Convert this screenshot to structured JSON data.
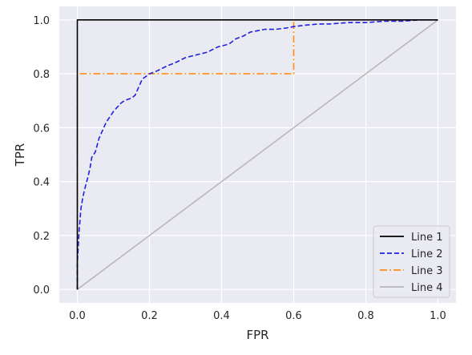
{
  "chart_data": {
    "type": "line",
    "xlabel": "FPR",
    "ylabel": "TPR",
    "xlim": [
      -0.05,
      1.05
    ],
    "ylim": [
      -0.05,
      1.05
    ],
    "xticks": [
      0.0,
      0.2,
      0.4,
      0.6,
      0.8,
      1.0
    ],
    "yticks": [
      0.0,
      0.2,
      0.4,
      0.6,
      0.8,
      1.0
    ],
    "xtick_labels": [
      "0.0",
      "0.2",
      "0.4",
      "0.6",
      "0.8",
      "1.0"
    ],
    "ytick_labels": [
      "0.0",
      "0.2",
      "0.4",
      "0.6",
      "0.8",
      "1.0"
    ],
    "grid": true,
    "legend_position": "lower-right",
    "colors": {
      "background": "#eaeaf2",
      "grid": "#ffffff"
    },
    "series": [
      {
        "name": "Line 1",
        "color": "#000000",
        "style": "solid",
        "x": [
          0,
          0,
          1
        ],
        "y": [
          0,
          1,
          1
        ]
      },
      {
        "name": "Line 2",
        "color": "#2020e0",
        "style": "dashed",
        "x": [
          0,
          0.0,
          0.005,
          0.01,
          0.015,
          0.02,
          0.03,
          0.035,
          0.04,
          0.05,
          0.06,
          0.07,
          0.08,
          0.09,
          0.1,
          0.12,
          0.13,
          0.15,
          0.16,
          0.17,
          0.18,
          0.2,
          0.22,
          0.25,
          0.27,
          0.3,
          0.33,
          0.36,
          0.39,
          0.42,
          0.44,
          0.46,
          0.48,
          0.5,
          0.52,
          0.55,
          0.58,
          0.6,
          0.63,
          0.67,
          0.7,
          0.75,
          0.8,
          0.85,
          0.9,
          0.95,
          1.0
        ],
        "y": [
          0,
          0.1,
          0.22,
          0.3,
          0.34,
          0.37,
          0.42,
          0.45,
          0.49,
          0.51,
          0.56,
          0.59,
          0.62,
          0.64,
          0.66,
          0.69,
          0.7,
          0.71,
          0.72,
          0.75,
          0.78,
          0.8,
          0.81,
          0.83,
          0.84,
          0.86,
          0.87,
          0.88,
          0.9,
          0.91,
          0.93,
          0.94,
          0.955,
          0.96,
          0.965,
          0.965,
          0.97,
          0.975,
          0.98,
          0.985,
          0.985,
          0.99,
          0.99,
          0.995,
          0.995,
          1.0,
          1.0
        ]
      },
      {
        "name": "Line 3",
        "color": "#ff8c1a",
        "style": "dashdot",
        "x": [
          0,
          0,
          0.6,
          0.6,
          1
        ],
        "y": [
          0,
          0.8,
          0.8,
          1,
          1
        ]
      },
      {
        "name": "Line 4",
        "color": "#b8b8b8",
        "style": "solid",
        "x": [
          0,
          1
        ],
        "y": [
          0,
          1
        ]
      }
    ]
  }
}
